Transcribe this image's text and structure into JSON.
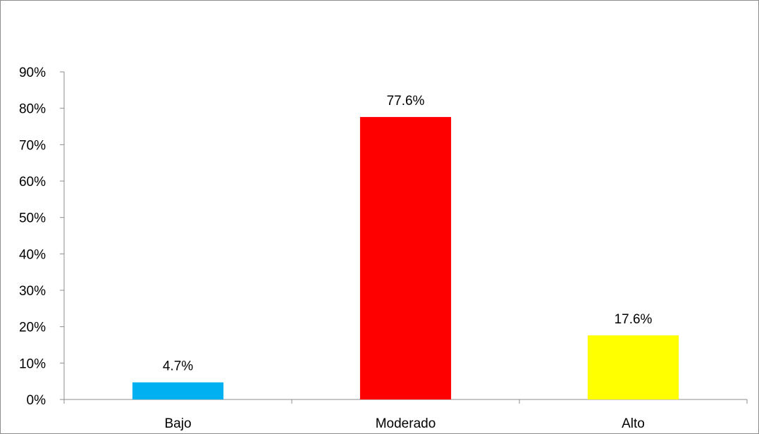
{
  "chart_data": {
    "type": "bar",
    "title": "",
    "xlabel": "",
    "ylabel": "",
    "categories": [
      "Bajo",
      "Moderado",
      "Alto"
    ],
    "values": [
      4.7,
      77.6,
      17.6
    ],
    "data_labels": [
      "4.7%",
      "77.6%",
      "17.6%"
    ],
    "colors": [
      "#00b0f0",
      "#ff0000",
      "#ffff00"
    ],
    "ylim": [
      0,
      90
    ],
    "yticks": [
      0,
      10,
      20,
      30,
      40,
      50,
      60,
      70,
      80,
      90
    ],
    "ytick_labels": [
      "0%",
      "10%",
      "20%",
      "30%",
      "40%",
      "50%",
      "60%",
      "70%",
      "80%",
      "90%"
    ],
    "grid": false,
    "legend": "none"
  }
}
